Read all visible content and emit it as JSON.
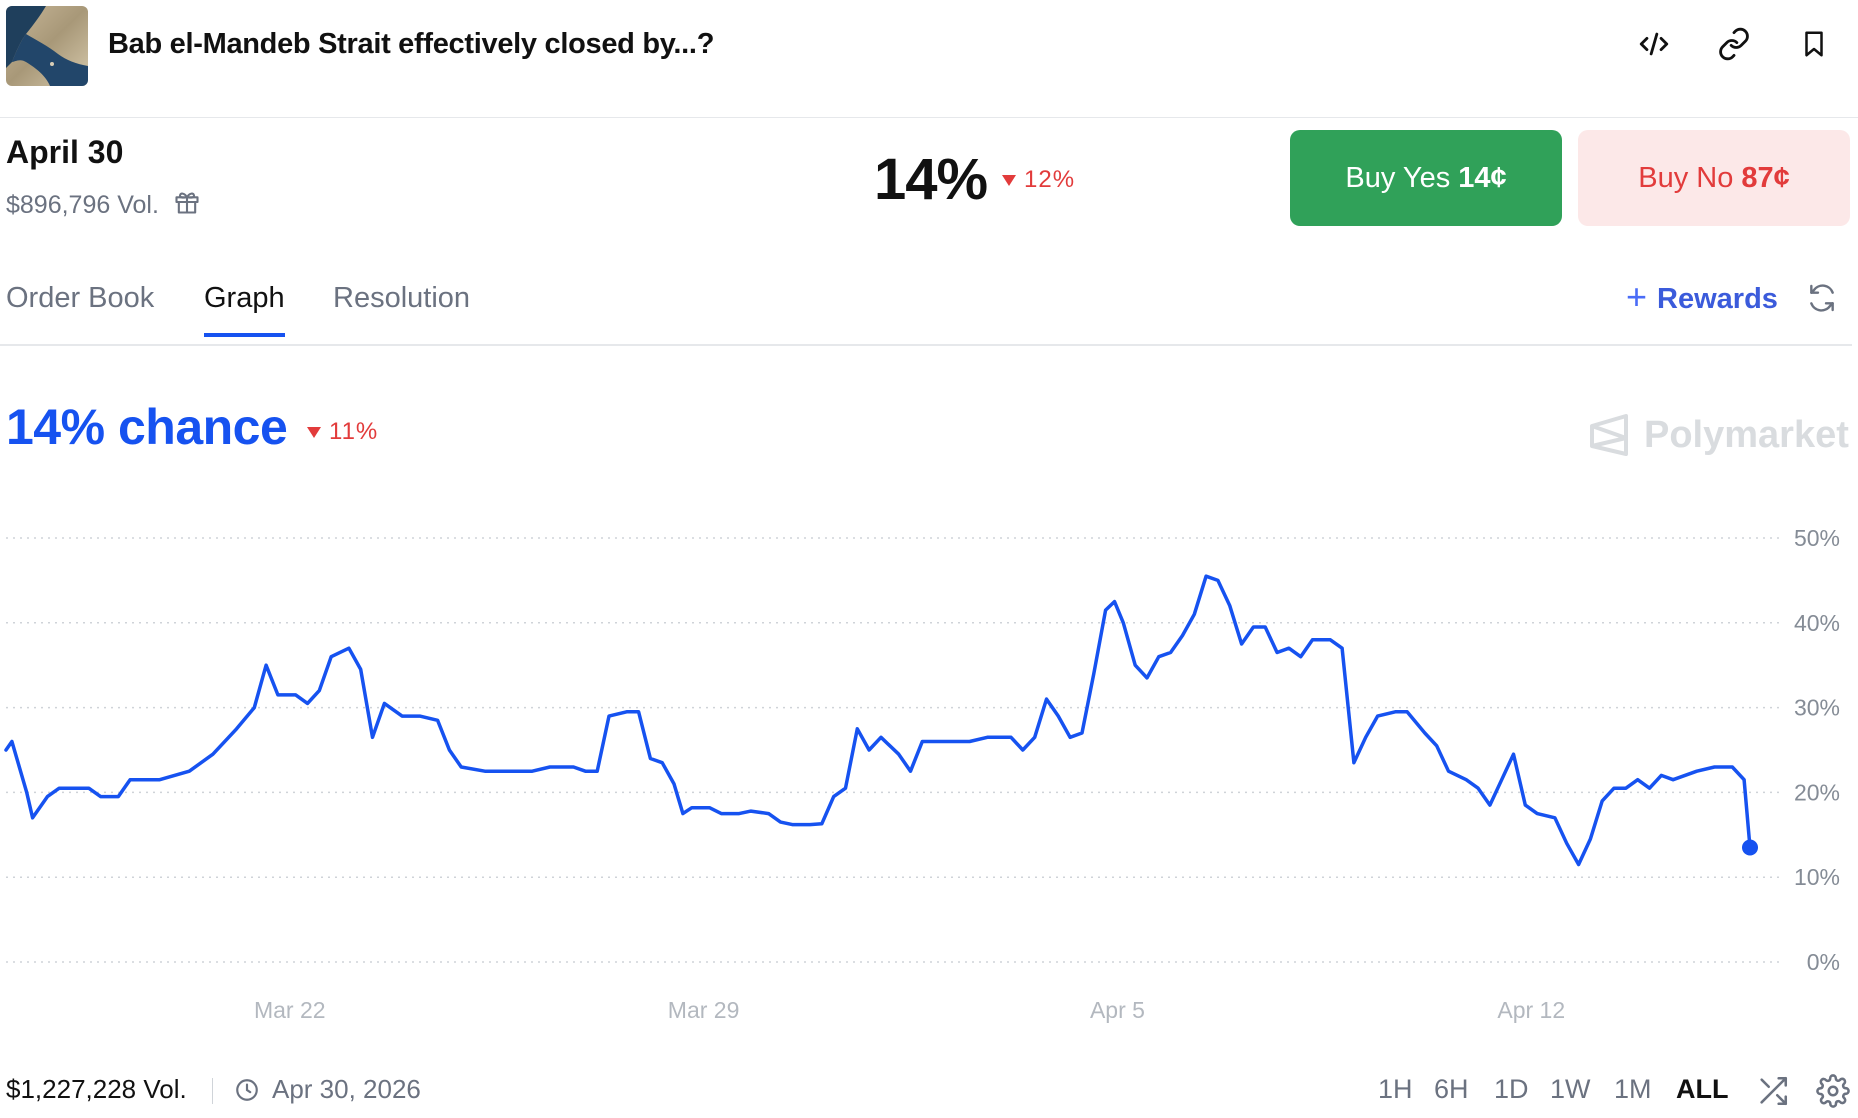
{
  "header": {
    "title": "Bab el-Mandeb Strait effectively closed by...?",
    "icons": [
      "embed-code-icon",
      "link-icon",
      "bookmark-icon"
    ]
  },
  "market": {
    "date": "April 30",
    "volume": "$896,796 Vol.",
    "probability": "14%",
    "change": "12%",
    "buy_yes_label": "Buy Yes",
    "buy_yes_price": "14¢",
    "buy_no_label": "Buy No",
    "buy_no_price": "87¢"
  },
  "tabs": [
    {
      "label": "Order Book",
      "active": false
    },
    {
      "label": "Graph",
      "active": true
    },
    {
      "label": "Resolution",
      "active": false
    }
  ],
  "rewards_label": "Rewards",
  "chance": {
    "label": "14% chance",
    "change": "11%"
  },
  "watermark": "Polymarket",
  "chart_data": {
    "type": "line",
    "y_tick_labels": [
      "0%",
      "10%",
      "20%",
      "30%",
      "40%",
      "50%"
    ],
    "ylim": [
      0,
      50
    ],
    "x_tick_labels": [
      "Mar 22",
      "Mar 29",
      "Apr 5",
      "Apr 12"
    ],
    "x_ticks": [
      4.8,
      11.8,
      18.8,
      25.8
    ],
    "xlim": [
      0,
      29.5
    ],
    "grid": true,
    "series": [
      {
        "color": "#1652f0",
        "points": [
          [
            0,
            25
          ],
          [
            0.1,
            26
          ],
          [
            0.35,
            20
          ],
          [
            0.45,
            17
          ],
          [
            0.7,
            19.5
          ],
          [
            0.9,
            20.5
          ],
          [
            1.4,
            20.5
          ],
          [
            1.6,
            19.5
          ],
          [
            1.9,
            19.5
          ],
          [
            2.1,
            21.5
          ],
          [
            2.6,
            21.5
          ],
          [
            3.1,
            22.5
          ],
          [
            3.5,
            24.5
          ],
          [
            3.9,
            27.5
          ],
          [
            4.2,
            30
          ],
          [
            4.4,
            35
          ],
          [
            4.6,
            31.5
          ],
          [
            4.9,
            31.5
          ],
          [
            5.1,
            30.5
          ],
          [
            5.3,
            32
          ],
          [
            5.5,
            36
          ],
          [
            5.8,
            37
          ],
          [
            6.0,
            34.5
          ],
          [
            6.2,
            26.5
          ],
          [
            6.4,
            30.5
          ],
          [
            6.7,
            29
          ],
          [
            7.0,
            29
          ],
          [
            7.3,
            28.5
          ],
          [
            7.5,
            25
          ],
          [
            7.7,
            23
          ],
          [
            8.1,
            22.5
          ],
          [
            8.5,
            22.5
          ],
          [
            8.9,
            22.5
          ],
          [
            9.2,
            23
          ],
          [
            9.6,
            23
          ],
          [
            9.8,
            22.5
          ],
          [
            10.0,
            22.5
          ],
          [
            10.2,
            29
          ],
          [
            10.5,
            29.5
          ],
          [
            10.7,
            29.5
          ],
          [
            10.9,
            24
          ],
          [
            11.1,
            23.5
          ],
          [
            11.3,
            21
          ],
          [
            11.45,
            17.5
          ],
          [
            11.6,
            18.2
          ],
          [
            11.9,
            18.2
          ],
          [
            12.1,
            17.5
          ],
          [
            12.4,
            17.5
          ],
          [
            12.6,
            17.8
          ],
          [
            12.9,
            17.5
          ],
          [
            13.1,
            16.5
          ],
          [
            13.3,
            16.2
          ],
          [
            13.6,
            16.2
          ],
          [
            13.8,
            16.3
          ],
          [
            14.0,
            19.5
          ],
          [
            14.2,
            20.5
          ],
          [
            14.4,
            27.5
          ],
          [
            14.6,
            25
          ],
          [
            14.8,
            26.5
          ],
          [
            15.1,
            24.5
          ],
          [
            15.3,
            22.5
          ],
          [
            15.5,
            26
          ],
          [
            15.9,
            26
          ],
          [
            16.3,
            26
          ],
          [
            16.6,
            26.5
          ],
          [
            17.0,
            26.5
          ],
          [
            17.2,
            25
          ],
          [
            17.4,
            26.5
          ],
          [
            17.6,
            31
          ],
          [
            17.8,
            29
          ],
          [
            18.0,
            26.5
          ],
          [
            18.2,
            27
          ],
          [
            18.4,
            34
          ],
          [
            18.6,
            41.5
          ],
          [
            18.75,
            42.5
          ],
          [
            18.9,
            40
          ],
          [
            19.1,
            35
          ],
          [
            19.3,
            33.5
          ],
          [
            19.5,
            36
          ],
          [
            19.7,
            36.5
          ],
          [
            19.9,
            38.5
          ],
          [
            20.1,
            41
          ],
          [
            20.3,
            45.5
          ],
          [
            20.5,
            45
          ],
          [
            20.7,
            42
          ],
          [
            20.9,
            37.5
          ],
          [
            21.1,
            39.5
          ],
          [
            21.3,
            39.5
          ],
          [
            21.5,
            36.5
          ],
          [
            21.7,
            37
          ],
          [
            21.9,
            36
          ],
          [
            22.1,
            38
          ],
          [
            22.4,
            38
          ],
          [
            22.6,
            37
          ],
          [
            22.8,
            23.5
          ],
          [
            23.0,
            26.5
          ],
          [
            23.2,
            29
          ],
          [
            23.5,
            29.5
          ],
          [
            23.7,
            29.5
          ],
          [
            24.0,
            27
          ],
          [
            24.2,
            25.5
          ],
          [
            24.4,
            22.5
          ],
          [
            24.7,
            21.5
          ],
          [
            24.9,
            20.5
          ],
          [
            25.1,
            18.5
          ],
          [
            25.3,
            21.5
          ],
          [
            25.5,
            24.5
          ],
          [
            25.7,
            18.5
          ],
          [
            25.9,
            17.5
          ],
          [
            26.2,
            17
          ],
          [
            26.4,
            14
          ],
          [
            26.6,
            11.5
          ],
          [
            26.8,
            14.5
          ],
          [
            27.0,
            19
          ],
          [
            27.2,
            20.5
          ],
          [
            27.4,
            20.5
          ],
          [
            27.6,
            21.5
          ],
          [
            27.8,
            20.5
          ],
          [
            28.0,
            22
          ],
          [
            28.2,
            21.5
          ],
          [
            28.6,
            22.5
          ],
          [
            28.9,
            23
          ],
          [
            29.2,
            23
          ],
          [
            29.4,
            21.5
          ],
          [
            29.5,
            13.5
          ]
        ]
      }
    ]
  },
  "footer": {
    "volume": "$1,227,228 Vol.",
    "end_date": "Apr 30, 2026",
    "ranges": [
      {
        "label": "1H",
        "active": false
      },
      {
        "label": "6H",
        "active": false
      },
      {
        "label": "1D",
        "active": false
      },
      {
        "label": "1W",
        "active": false
      },
      {
        "label": "1M",
        "active": false
      },
      {
        "label": "ALL",
        "active": true
      }
    ]
  }
}
